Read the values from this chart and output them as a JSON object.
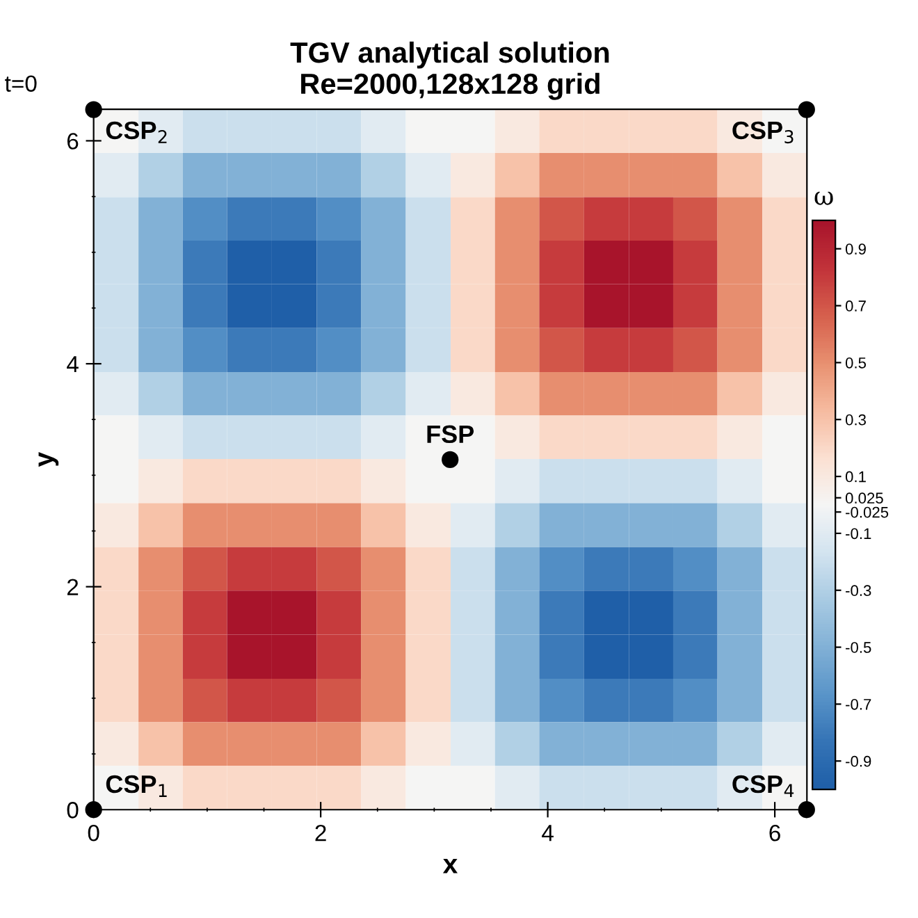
{
  "chart_data": {
    "type": "heatmap",
    "title": "TGV analytical solution\nRe=2000,128x128 grid",
    "xlabel": "x",
    "ylabel": "y",
    "clabel": "ω",
    "x": [
      0.2,
      0.59,
      0.98,
      1.37,
      1.77,
      2.16,
      2.55,
      2.95,
      3.34,
      3.73,
      4.12,
      4.52,
      4.91,
      5.3,
      5.69,
      6.09
    ],
    "y": [
      6.09,
      5.69,
      5.3,
      4.91,
      4.52,
      4.12,
      3.73,
      3.34,
      2.95,
      2.55,
      2.16,
      1.77,
      1.37,
      0.98,
      0.59,
      0.2
    ],
    "cells": [
      [
        0,
        -0.1,
        -0.2,
        -0.2,
        -0.2,
        -0.2,
        -0.1,
        0,
        0,
        0.1,
        0.2,
        0.2,
        0.2,
        0.2,
        0.1,
        0
      ],
      [
        -0.1,
        -0.3,
        -0.5,
        -0.5,
        -0.5,
        -0.5,
        -0.3,
        -0.1,
        0.1,
        0.3,
        0.5,
        0.5,
        0.5,
        0.5,
        0.3,
        0.1
      ],
      [
        -0.2,
        -0.5,
        -0.7,
        -0.8,
        -0.8,
        -0.7,
        -0.5,
        -0.2,
        0.2,
        0.5,
        0.7,
        0.8,
        0.8,
        0.7,
        0.5,
        0.2
      ],
      [
        -0.2,
        -0.5,
        -0.8,
        -1.0,
        -1.0,
        -0.8,
        -0.5,
        -0.2,
        0.2,
        0.5,
        0.8,
        1.0,
        1.0,
        0.8,
        0.5,
        0.2
      ],
      [
        -0.2,
        -0.5,
        -0.8,
        -1.0,
        -1.0,
        -0.8,
        -0.5,
        -0.2,
        0.2,
        0.5,
        0.8,
        1.0,
        1.0,
        0.8,
        0.5,
        0.2
      ],
      [
        -0.2,
        -0.5,
        -0.7,
        -0.8,
        -0.8,
        -0.7,
        -0.5,
        -0.2,
        0.2,
        0.5,
        0.7,
        0.8,
        0.8,
        0.7,
        0.5,
        0.2
      ],
      [
        -0.1,
        -0.3,
        -0.5,
        -0.5,
        -0.5,
        -0.5,
        -0.3,
        -0.1,
        0.1,
        0.3,
        0.5,
        0.5,
        0.5,
        0.5,
        0.3,
        0.1
      ],
      [
        0,
        -0.1,
        -0.2,
        -0.2,
        -0.2,
        -0.2,
        -0.1,
        0,
        0,
        0.1,
        0.2,
        0.2,
        0.2,
        0.2,
        0.1,
        0
      ],
      [
        0,
        0.1,
        0.2,
        0.2,
        0.2,
        0.2,
        0.1,
        0,
        0,
        -0.1,
        -0.2,
        -0.2,
        -0.2,
        -0.2,
        -0.1,
        0
      ],
      [
        0.1,
        0.3,
        0.5,
        0.5,
        0.5,
        0.5,
        0.3,
        0.1,
        -0.1,
        -0.3,
        -0.5,
        -0.5,
        -0.5,
        -0.5,
        -0.3,
        -0.1
      ],
      [
        0.2,
        0.5,
        0.7,
        0.8,
        0.8,
        0.7,
        0.5,
        0.2,
        -0.2,
        -0.5,
        -0.7,
        -0.8,
        -0.8,
        -0.7,
        -0.5,
        -0.2
      ],
      [
        0.2,
        0.5,
        0.8,
        1.0,
        1.0,
        0.8,
        0.5,
        0.2,
        -0.2,
        -0.5,
        -0.8,
        -1.0,
        -1.0,
        -0.8,
        -0.5,
        -0.2
      ],
      [
        0.2,
        0.5,
        0.8,
        1.0,
        1.0,
        0.8,
        0.5,
        0.2,
        -0.2,
        -0.5,
        -0.8,
        -1.0,
        -1.0,
        -0.8,
        -0.5,
        -0.2
      ],
      [
        0.2,
        0.5,
        0.7,
        0.8,
        0.8,
        0.7,
        0.5,
        0.2,
        -0.2,
        -0.5,
        -0.7,
        -0.8,
        -0.8,
        -0.7,
        -0.5,
        -0.2
      ],
      [
        0.1,
        0.3,
        0.5,
        0.5,
        0.5,
        0.5,
        0.3,
        0.1,
        -0.1,
        -0.3,
        -0.5,
        -0.5,
        -0.5,
        -0.5,
        -0.3,
        -0.1
      ],
      [
        0,
        0.1,
        0.2,
        0.2,
        0.2,
        0.2,
        0.1,
        0,
        0,
        -0.1,
        -0.2,
        -0.2,
        -0.2,
        -0.2,
        -0.1,
        0
      ]
    ],
    "clim": [
      -1,
      1
    ],
    "cticks": [
      -0.9,
      -0.7,
      -0.5,
      -0.3,
      -0.1,
      -0.025,
      0.025,
      0.1,
      0.3,
      0.5,
      0.7,
      0.9
    ],
    "colors": [
      "#1f5fa8",
      "#3574b6",
      "#5a95c9",
      "#82b1d6",
      "#a9cbe3",
      "#d3e4f0",
      "#f5f5f5",
      "#fbe0d2",
      "#f6bba0",
      "#e89070",
      "#d6604d",
      "#c2333a",
      "#a8142b"
    ],
    "series": [
      {
        "type": "scatter",
        "color": "#000000",
        "x": [
          0,
          6.28,
          6.28,
          0,
          3.14
        ],
        "values": [
          0,
          0,
          6.28,
          6.28,
          3.14
        ],
        "marker": "circle"
      }
    ],
    "annotations": [
      {
        "text": "CSP$_{1}$",
        "x": 0,
        "y": 0
      },
      {
        "text": "CSP$_{4}$",
        "x": 6.283,
        "y": 0
      },
      {
        "text": "CSP$_{3}$",
        "x": 6.283,
        "y": 6.283
      },
      {
        "text": "CSP$_{2}$",
        "x": 0,
        "y": 6.283
      },
      {
        "text": "FSP",
        "x": 3.14,
        "y": 3.14
      },
      "t=0"
    ],
    "xlim": [
      0,
      6.283
    ],
    "ylim": [
      0,
      6.283
    ],
    "xticks": [
      0,
      2,
      4,
      6
    ],
    "yticks": [
      0,
      2,
      4,
      6
    ],
    "grid": false
  }
}
